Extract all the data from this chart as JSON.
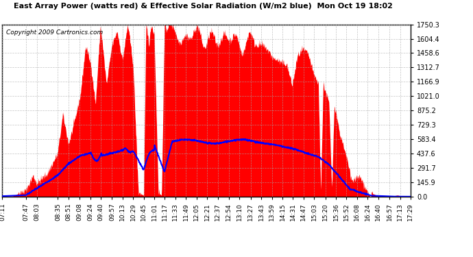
{
  "title": "East Array Power (watts red) & Effective Solar Radiation (W/m2 blue)  Mon Oct 19 18:02",
  "copyright": "Copyright 2009 Cartronics.com",
  "background_color": "#ffffff",
  "plot_bg_color": "#ffffff",
  "yticks": [
    0.0,
    145.9,
    291.7,
    437.6,
    583.4,
    729.3,
    875.2,
    1021.0,
    1166.9,
    1312.7,
    1458.6,
    1604.4,
    1750.3
  ],
  "ymax": 1750.3,
  "ymin": 0.0,
  "x_labels": [
    "07:11",
    "07:47",
    "08:03",
    "08:35",
    "08:51",
    "09:08",
    "09:24",
    "09:40",
    "09:57",
    "10:13",
    "10:29",
    "10:45",
    "11:01",
    "11:17",
    "11:33",
    "11:49",
    "12:05",
    "12:21",
    "12:37",
    "12:54",
    "13:10",
    "13:27",
    "13:43",
    "13:59",
    "14:15",
    "14:31",
    "14:47",
    "15:03",
    "15:20",
    "15:36",
    "15:52",
    "16:08",
    "16:24",
    "16:40",
    "16:57",
    "17:13",
    "17:29"
  ],
  "red_fill_color": "#ff0000",
  "blue_line_color": "#0000ff",
  "grid_color": "#aaaaaa",
  "grid_style": "--",
  "border_color": "#000000",
  "start_hhmm": "07:11",
  "end_hhmm": "17:29"
}
